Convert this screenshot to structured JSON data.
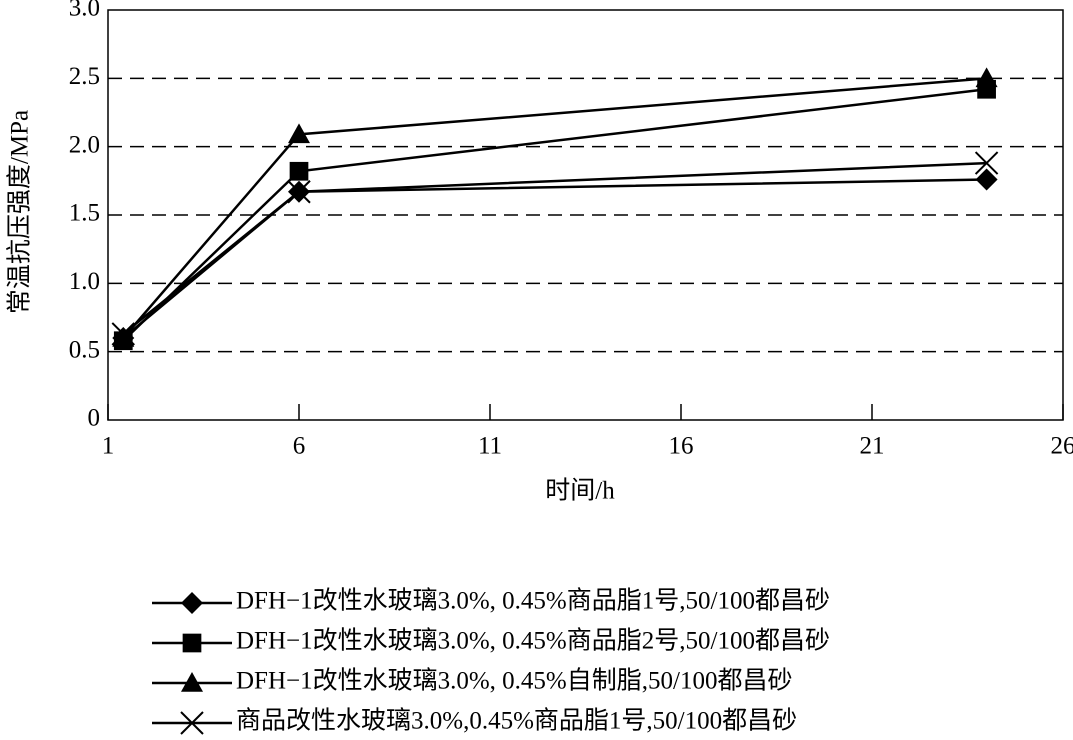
{
  "chart_data": {
    "type": "line",
    "x_label": "时间/h",
    "y_label": "常温抗压强度/MPa",
    "x": [
      1.4,
      6,
      24
    ],
    "series": [
      {
        "name": "DFH−1改性水玻璃3.0%, 0.45%商品脂1号,50/100都昌砂",
        "color": "#000000",
        "marker": "diamond",
        "values": [
          0.6,
          1.67,
          1.76
        ]
      },
      {
        "name": "DFH−1改性水玻璃3.0%, 0.45%商品脂2号,50/100都昌砂",
        "color": "#000000",
        "marker": "square",
        "values": [
          0.58,
          1.82,
          2.42
        ]
      },
      {
        "name": "DFH−1改性水玻璃3.0%, 0.45%自制脂,50/100都昌砂",
        "color": "#000000",
        "marker": "triangle",
        "values": [
          0.6,
          2.09,
          2.5
        ]
      },
      {
        "name": "商品改性水玻璃3.0%,0.45%商品脂1号,50/100都昌砂",
        "color": "#000000",
        "marker": "x",
        "values": [
          0.63,
          1.67,
          1.88
        ]
      }
    ],
    "xlim": [
      1,
      26
    ],
    "xticks": [
      1,
      6,
      11,
      16,
      21,
      26
    ],
    "ylim": [
      0,
      3
    ],
    "yticks": [
      0,
      {
        "value": 0.5,
        "label": "0.5"
      },
      {
        "value": 1,
        "label": "1.0"
      },
      {
        "value": 1.5,
        "label": "1.5"
      },
      {
        "value": 2,
        "label": "2.0"
      },
      {
        "value": 2.5,
        "label": "2.5"
      },
      {
        "value": 3,
        "label": "3.0"
      }
    ],
    "grid": true,
    "legend": "bottom"
  }
}
